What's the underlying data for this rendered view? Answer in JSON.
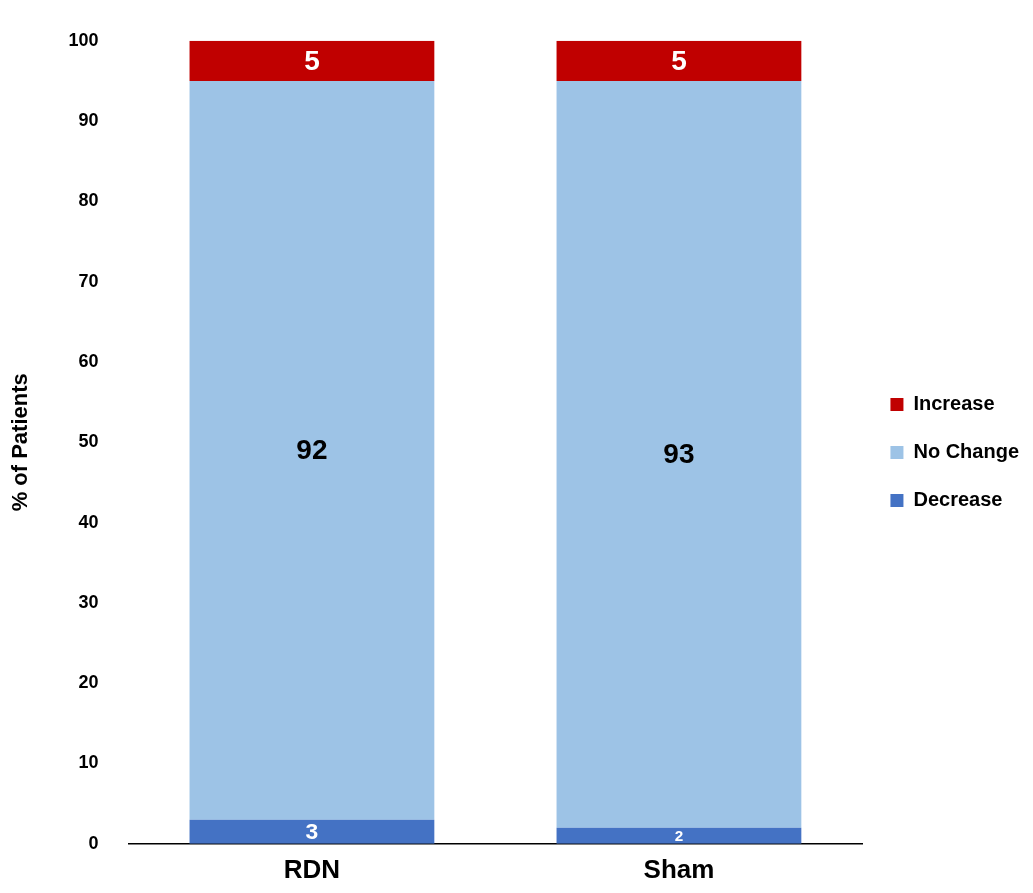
{
  "chart_data": {
    "type": "bar",
    "stacked": true,
    "ylabel": "% of Patients",
    "categories": [
      "RDN",
      "Sham"
    ],
    "series": [
      {
        "name": "Decrease",
        "color": "#4472c4",
        "values": [
          3,
          2
        ]
      },
      {
        "name": "No Change",
        "color": "#9dc3e6",
        "values": [
          92,
          93
        ]
      },
      {
        "name": "Increase",
        "color": "#c00000",
        "values": [
          5,
          5
        ]
      }
    ],
    "ylim": [
      0,
      100
    ],
    "yticks": [
      0,
      10,
      20,
      30,
      40,
      50,
      60,
      70,
      80,
      90,
      100
    ],
    "grid": false,
    "legend": "right",
    "data_labels": true
  }
}
